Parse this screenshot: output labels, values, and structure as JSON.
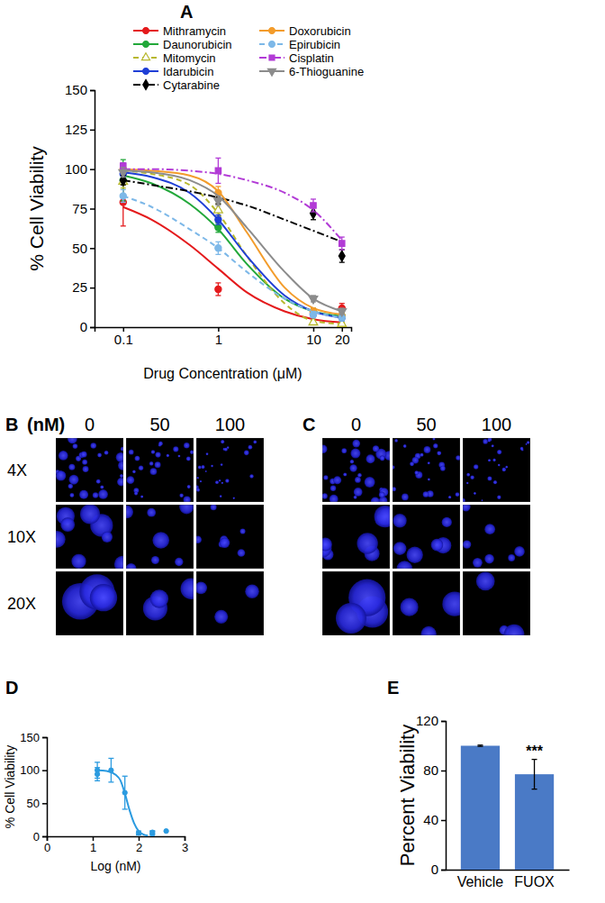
{
  "chart_data": [
    {
      "type": "line",
      "title": "A",
      "xlabel": "Drug Concentration (μM)",
      "ylabel": "% Cell Viability",
      "log": "x",
      "xlim": [
        0.05,
        25
      ],
      "xticks": [
        0.1,
        1,
        10,
        20
      ],
      "ylim": [
        0,
        150
      ],
      "yticks": [
        0,
        25,
        50,
        75,
        100,
        125,
        150
      ],
      "legend": "top",
      "x": [
        0.1,
        1,
        10,
        20
      ],
      "fit_x": [
        0.1,
        0.2,
        0.5,
        1,
        2,
        5,
        10,
        20
      ],
      "series": [
        {
          "name": "Mithramycin",
          "color": "#e41a1c",
          "marker": "circle",
          "line_style": "solid",
          "values": [
            79,
            24,
            9,
            12
          ],
          "errors": [
            15,
            4,
            2,
            3
          ],
          "fit_values": [
            76,
            68,
            52,
            37,
            22,
            10,
            5,
            3
          ]
        },
        {
          "name": "Daunorubicin",
          "color": "#22a83a",
          "marker": "circle",
          "line_style": "solid",
          "values": [
            93,
            63,
            10,
            7
          ],
          "errors": [
            13,
            3,
            2,
            2
          ],
          "fit_values": [
            96,
            91,
            78,
            62,
            40,
            18,
            10,
            7
          ]
        },
        {
          "name": "Mitomycin",
          "color": "#b8b82e",
          "marker": "triangle-open",
          "line_style": "dashed",
          "values": [
            92,
            74,
            3,
            2
          ],
          "errors": [
            4,
            4,
            1,
            1
          ],
          "fit_values": [
            99,
            97,
            90,
            72,
            45,
            15,
            4,
            2
          ]
        },
        {
          "name": "Idarubicin",
          "color": "#1f3fd6",
          "marker": "circle",
          "line_style": "solid",
          "values": [
            97,
            68,
            8,
            6
          ],
          "errors": [
            3,
            3,
            2,
            2
          ],
          "fit_values": [
            98,
            95,
            85,
            68,
            45,
            20,
            10,
            6
          ]
        },
        {
          "name": "Cytarabine",
          "color": "#000000",
          "marker": "diamond",
          "line_style": "dashdot",
          "values": [
            93,
            81,
            72,
            45
          ],
          "errors": [
            3,
            3,
            4,
            4
          ],
          "fit_values": [
            93,
            90,
            86,
            82,
            77,
            68,
            61,
            54
          ]
        },
        {
          "name": "Doxorubicin",
          "color": "#f39c2b",
          "marker": "circle",
          "line_style": "solid",
          "values": [
            100,
            85,
            10,
            7
          ],
          "errors": [
            2,
            4,
            2,
            2
          ],
          "fit_values": [
            100,
            99,
            96,
            86,
            60,
            25,
            12,
            8
          ]
        },
        {
          "name": "Epirubicin",
          "color": "#7db8e8",
          "marker": "circle",
          "line_style": "dashed",
          "values": [
            83,
            50,
            8,
            6
          ],
          "errors": [
            4,
            4,
            2,
            2
          ],
          "fit_values": [
            83,
            76,
            62,
            50,
            35,
            18,
            10,
            6
          ]
        },
        {
          "name": "Cisplatin",
          "color": "#b23bd6",
          "marker": "square",
          "line_style": "dashdot",
          "values": [
            102,
            99,
            77,
            53
          ],
          "errors": [
            2,
            8,
            4,
            4
          ],
          "fit_values": [
            100,
            100,
            99,
            97,
            93,
            85,
            74,
            55
          ]
        },
        {
          "name": "6-Thioguanine",
          "color": "#8c8c8c",
          "marker": "triangle-down",
          "line_style": "solid",
          "values": [
            98,
            80,
            18,
            10
          ],
          "errors": [
            3,
            3,
            2,
            2
          ],
          "fit_values": [
            99,
            98,
            93,
            83,
            63,
            35,
            18,
            10
          ]
        }
      ]
    },
    {
      "type": "image_grid",
      "title": "B",
      "unit": "(nM)",
      "columns": [
        0,
        50,
        100
      ],
      "rows": [
        "4X",
        "10X",
        "20X"
      ]
    },
    {
      "type": "image_grid",
      "title": "C",
      "columns": [
        0,
        50,
        100
      ],
      "rows": [
        null,
        null,
        null
      ]
    },
    {
      "type": "scatter",
      "title": "D",
      "xlabel": "Log (nM)",
      "ylabel": "% Cell Viability",
      "xlim": [
        0,
        3
      ],
      "xticks": [
        0,
        1,
        2,
        3
      ],
      "ylim": [
        0,
        150
      ],
      "yticks": [
        0,
        50,
        100,
        150
      ],
      "color": "#2b9be0",
      "marker": "circle",
      "x": [
        1.1,
        1.1,
        1.4,
        1.7,
        2.0,
        2.3,
        2.3,
        2.6
      ],
      "values": [
        100,
        94,
        100,
        66,
        5,
        3,
        6,
        8
      ],
      "errors": [
        12,
        10,
        18,
        25,
        3,
        5,
        2,
        null
      ],
      "fit_x": [
        1.1,
        1.3,
        1.5,
        1.6,
        1.7,
        1.8,
        1.9,
        2.0,
        2.1,
        2.2
      ],
      "fit_values": [
        100,
        99,
        93,
        85,
        65,
        40,
        20,
        8,
        3,
        1
      ]
    },
    {
      "type": "bar",
      "title": "E",
      "ylabel": "Percent  Viability",
      "categories": [
        "Vehicle",
        "FUOX"
      ],
      "values": [
        100,
        77
      ],
      "errors": [
        0.5,
        12
      ],
      "color": "#4a7ac6",
      "ylim": [
        0,
        120
      ],
      "yticks": [
        0,
        40,
        80,
        120
      ],
      "annotations": [
        {
          "x": "FUOX",
          "text": "***"
        }
      ]
    }
  ]
}
